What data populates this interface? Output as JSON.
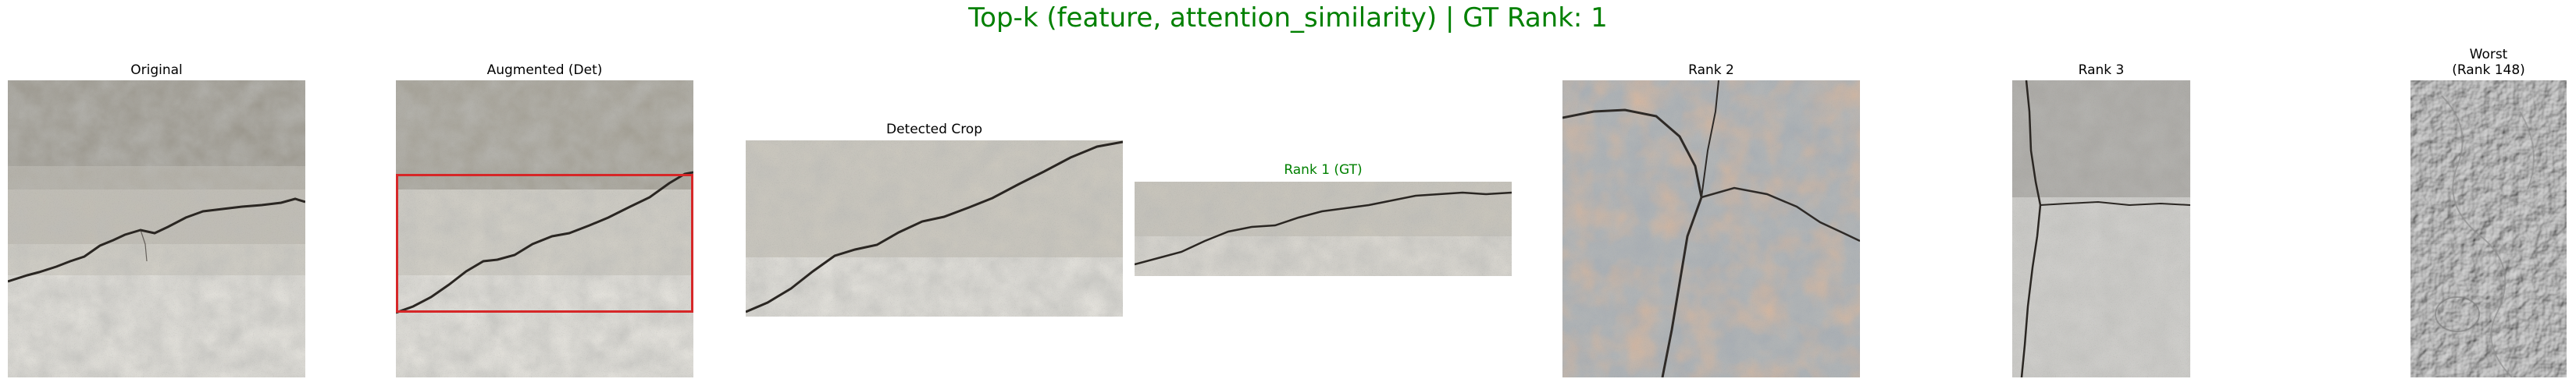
{
  "figure": {
    "title": "Top-k (feature, attention_similarity) | GT Rank: 1",
    "title_color": "#008000"
  },
  "panels": {
    "original": {
      "title": "Original"
    },
    "augmented": {
      "title": "Augmented (Det)",
      "box_color": "#d62728"
    },
    "crop": {
      "title": "Detected Crop"
    },
    "rank1": {
      "title": "Rank 1 (GT)",
      "title_color": "#008000"
    },
    "rank2": {
      "title": "Rank 2"
    },
    "rank3": {
      "title": "Rank 3"
    },
    "worst": {
      "title": "Worst\n(Rank 148)"
    }
  }
}
